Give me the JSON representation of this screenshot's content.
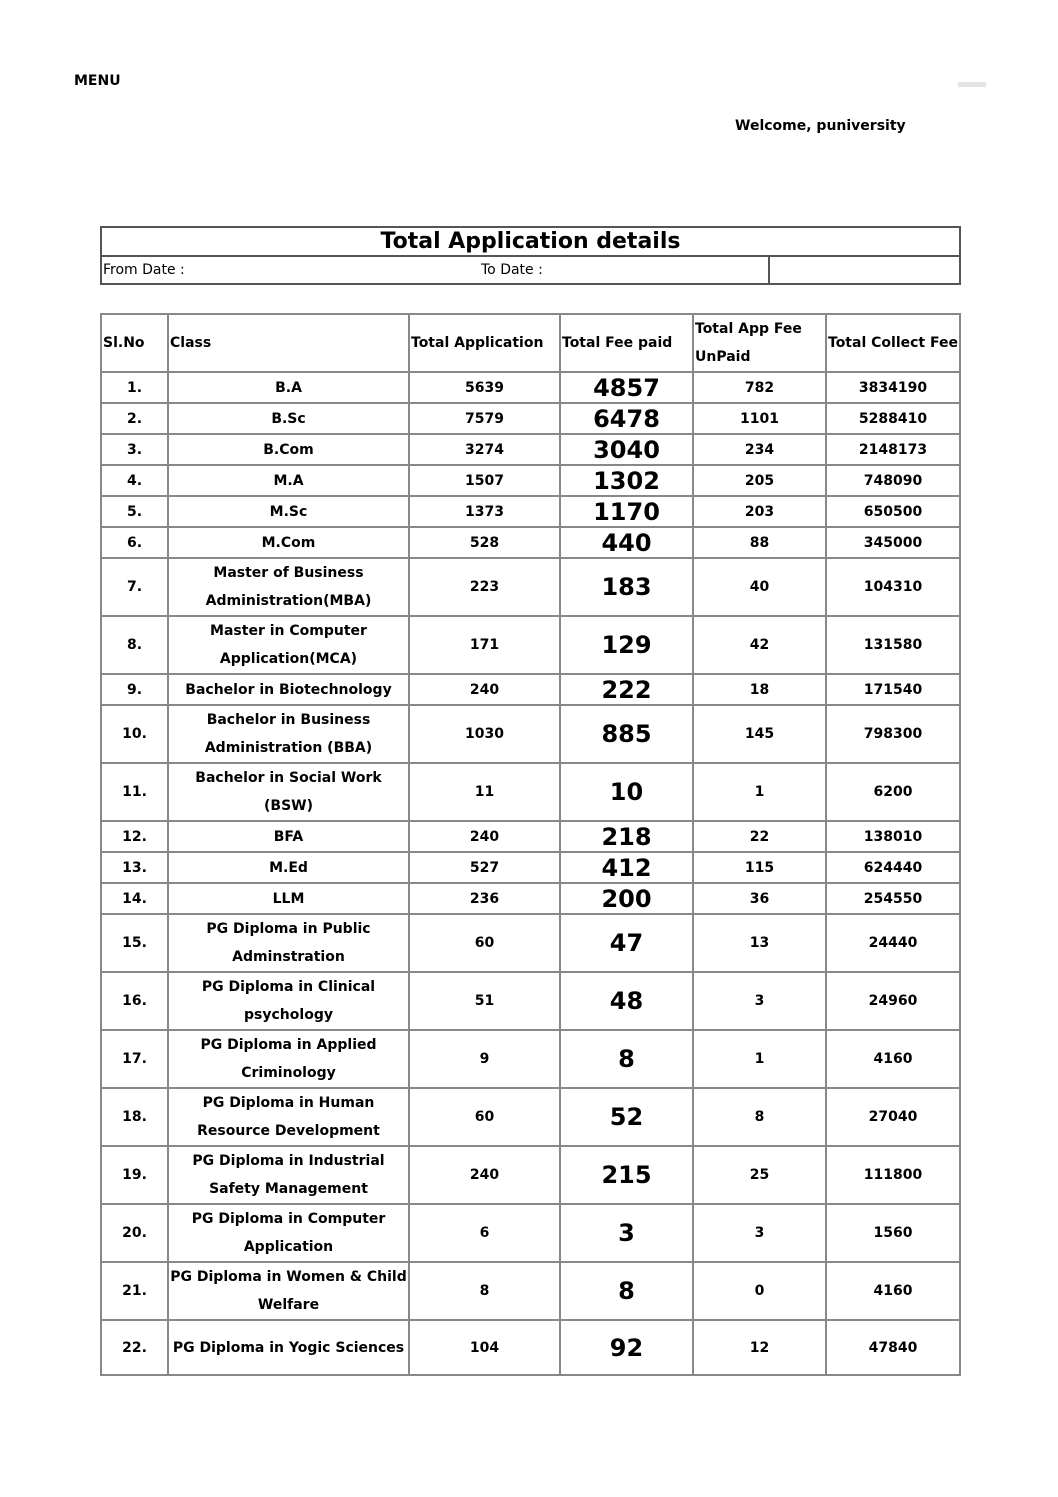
{
  "header": {
    "menu_label": "MENU",
    "welcome": "Welcome, puniversity"
  },
  "summary": {
    "title": "Total Application details",
    "from_date_label": "From Date :",
    "to_date_label": "To Date :"
  },
  "table": {
    "columns": [
      "Sl.No",
      "Class",
      "Total Application",
      "Total Fee paid",
      "Total App Fee UnPaid",
      "Total Collect Fee"
    ],
    "rows": [
      {
        "sl": "1.",
        "class": "B.A",
        "total_application": "5639",
        "total_fee_paid": "4857",
        "unpaid": "782",
        "collect_fee": "3834190"
      },
      {
        "sl": "2.",
        "class": "B.Sc",
        "total_application": "7579",
        "total_fee_paid": "6478",
        "unpaid": "1101",
        "collect_fee": "5288410"
      },
      {
        "sl": "3.",
        "class": "B.Com",
        "total_application": "3274",
        "total_fee_paid": "3040",
        "unpaid": "234",
        "collect_fee": "2148173"
      },
      {
        "sl": "4.",
        "class": "M.A",
        "total_application": "1507",
        "total_fee_paid": "1302",
        "unpaid": "205",
        "collect_fee": "748090"
      },
      {
        "sl": "5.",
        "class": "M.Sc",
        "total_application": "1373",
        "total_fee_paid": "1170",
        "unpaid": "203",
        "collect_fee": "650500"
      },
      {
        "sl": "6.",
        "class": "M.Com",
        "total_application": "528",
        "total_fee_paid": "440",
        "unpaid": "88",
        "collect_fee": "345000"
      },
      {
        "sl": "7.",
        "class": "Master of Business Administration(MBA)",
        "total_application": "223",
        "total_fee_paid": "183",
        "unpaid": "40",
        "collect_fee": "104310"
      },
      {
        "sl": "8.",
        "class": "Master in Computer Application(MCA)",
        "total_application": "171",
        "total_fee_paid": "129",
        "unpaid": "42",
        "collect_fee": "131580"
      },
      {
        "sl": "9.",
        "class": "Bachelor in Biotechnology",
        "total_application": "240",
        "total_fee_paid": "222",
        "unpaid": "18",
        "collect_fee": "171540"
      },
      {
        "sl": "10.",
        "class": "Bachelor in Business Administration (BBA)",
        "total_application": "1030",
        "total_fee_paid": "885",
        "unpaid": "145",
        "collect_fee": "798300"
      },
      {
        "sl": "11.",
        "class": "Bachelor in Social Work (BSW)",
        "total_application": "11",
        "total_fee_paid": "10",
        "unpaid": "1",
        "collect_fee": "6200"
      },
      {
        "sl": "12.",
        "class": "BFA",
        "total_application": "240",
        "total_fee_paid": "218",
        "unpaid": "22",
        "collect_fee": "138010"
      },
      {
        "sl": "13.",
        "class": "M.Ed",
        "total_application": "527",
        "total_fee_paid": "412",
        "unpaid": "115",
        "collect_fee": "624440"
      },
      {
        "sl": "14.",
        "class": "LLM",
        "total_application": "236",
        "total_fee_paid": "200",
        "unpaid": "36",
        "collect_fee": "254550"
      },
      {
        "sl": "15.",
        "class": "PG Diploma in Public Adminstration",
        "total_application": "60",
        "total_fee_paid": "47",
        "unpaid": "13",
        "collect_fee": "24440"
      },
      {
        "sl": "16.",
        "class": "PG Diploma in Clinical psychology",
        "total_application": "51",
        "total_fee_paid": "48",
        "unpaid": "3",
        "collect_fee": "24960"
      },
      {
        "sl": "17.",
        "class": "PG Diploma in Applied Criminology",
        "total_application": "9",
        "total_fee_paid": "8",
        "unpaid": "1",
        "collect_fee": "4160"
      },
      {
        "sl": "18.",
        "class": "PG Diploma in Human Resource Development",
        "total_application": "60",
        "total_fee_paid": "52",
        "unpaid": "8",
        "collect_fee": "27040"
      },
      {
        "sl": "19.",
        "class": "PG Diploma in Industrial Safety Management",
        "total_application": "240",
        "total_fee_paid": "215",
        "unpaid": "25",
        "collect_fee": "111800"
      },
      {
        "sl": "20.",
        "class": "PG Diploma in Computer Application",
        "total_application": "6",
        "total_fee_paid": "3",
        "unpaid": "3",
        "collect_fee": "1560"
      },
      {
        "sl": "21.",
        "class": "PG Diploma in Women & Child Welfare",
        "total_application": "8",
        "total_fee_paid": "8",
        "unpaid": "0",
        "collect_fee": "4160"
      },
      {
        "sl": "22.",
        "class": "PG Diploma in Yogic Sciences",
        "total_application": "104",
        "total_fee_paid": "92",
        "unpaid": "12",
        "collect_fee": "47840"
      }
    ]
  }
}
